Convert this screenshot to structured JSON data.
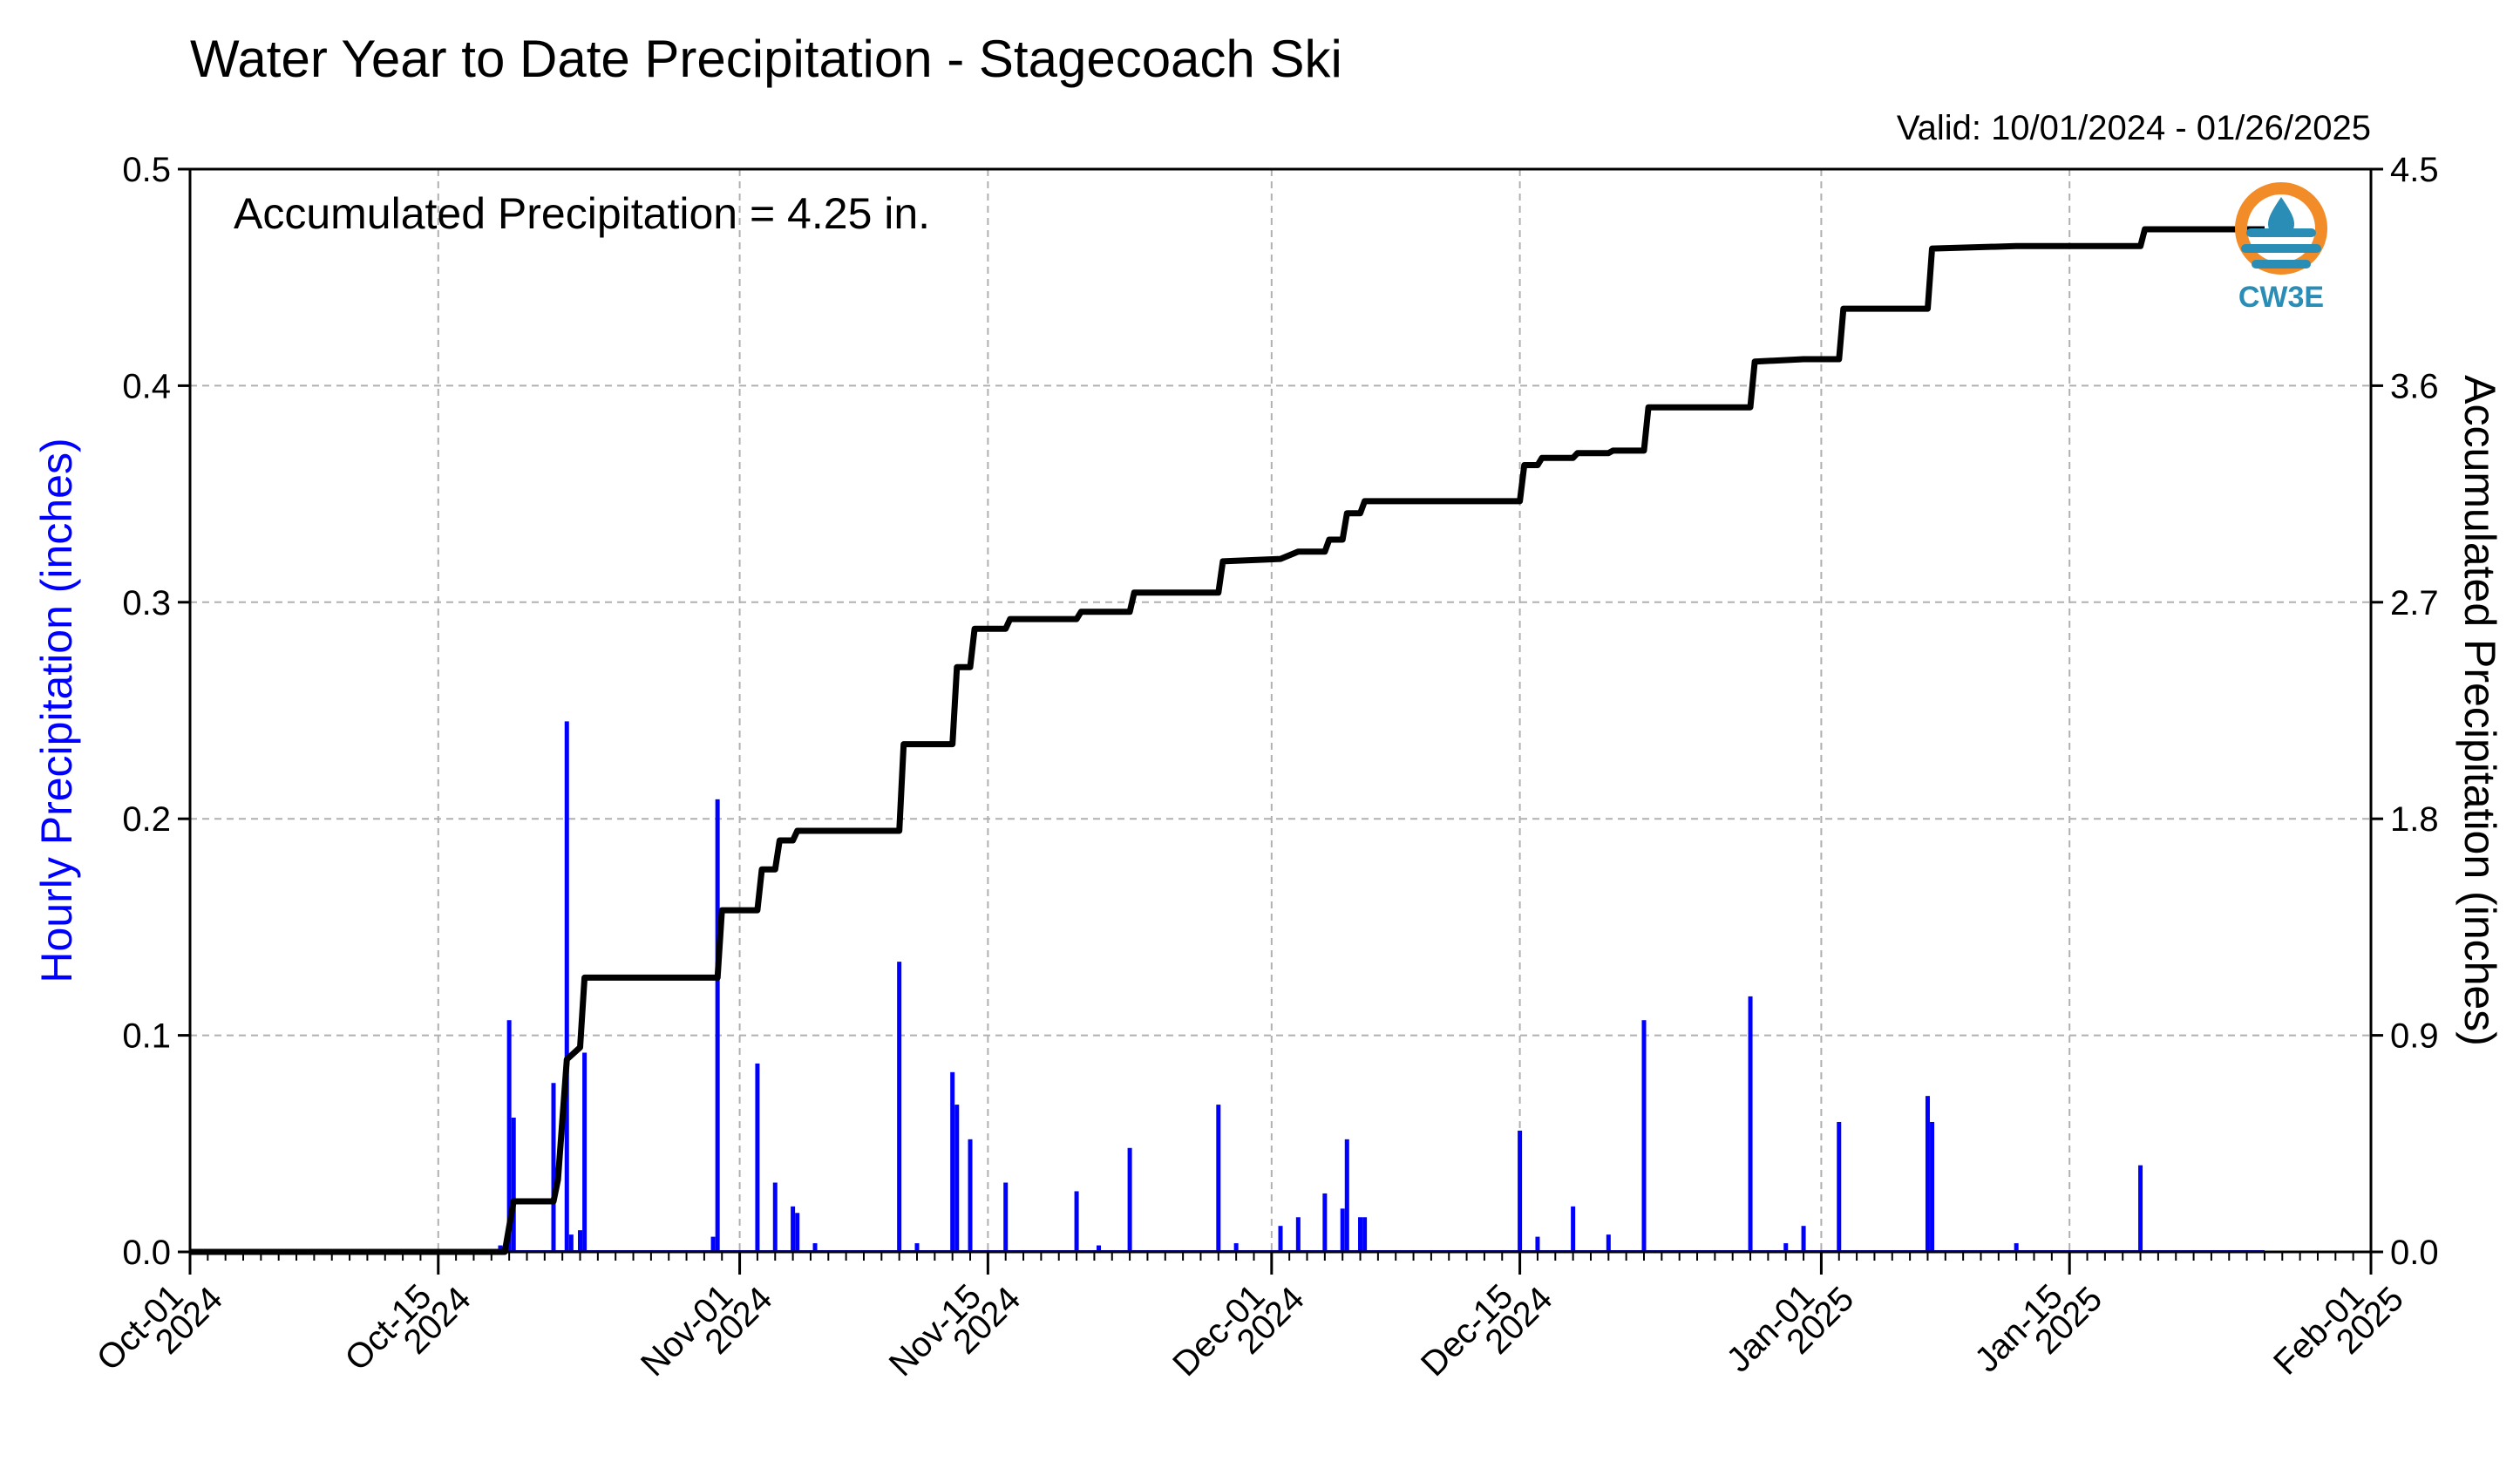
{
  "chart_data": {
    "type": "bar",
    "title": "Water Year to Date Precipitation - Stagecoach Ski",
    "valid_text": "Valid: 10/01/2024 - 01/26/2025",
    "annotation": "Accumulated Precipitation = 4.25 in.",
    "ylabel_left": "Hourly Precipitation (inches)",
    "ylabel_right": "Accumulated Precipitation (inches)",
    "xlim": [
      "2024-10-01",
      "2025-02-01"
    ],
    "ylim_left": [
      0,
      0.5
    ],
    "ylim_right": [
      0,
      4.5
    ],
    "left_ticks": [
      "0.0",
      "0.1",
      "0.2",
      "0.3",
      "0.4",
      "0.5"
    ],
    "right_ticks": [
      "0.0",
      "0.9",
      "1.8",
      "2.7",
      "3.6",
      "4.5"
    ],
    "x_ticks": [
      {
        "date": "2024-10-01",
        "line1": "Oct-01",
        "line2": "2024"
      },
      {
        "date": "2024-10-15",
        "line1": "Oct-15",
        "line2": "2024"
      },
      {
        "date": "2024-11-01",
        "line1": "Nov-01",
        "line2": "2024"
      },
      {
        "date": "2024-11-15",
        "line1": "Nov-15",
        "line2": "2024"
      },
      {
        "date": "2024-12-01",
        "line1": "Dec-01",
        "line2": "2024"
      },
      {
        "date": "2024-12-15",
        "line1": "Dec-15",
        "line2": "2024"
      },
      {
        "date": "2025-01-01",
        "line1": "Jan-01",
        "line2": "2025"
      },
      {
        "date": "2025-01-15",
        "line1": "Jan-15",
        "line2": "2025"
      },
      {
        "date": "2025-02-01",
        "line1": "Feb-01",
        "line2": "2025"
      }
    ],
    "grid": true,
    "colors": {
      "hourly": "#0000ff",
      "accumulated": "#000000",
      "grid": "#b0b0b0"
    },
    "hourly_series": {
      "name": "Hourly Precipitation (inches)",
      "points": [
        [
          "2024-10-18T12:00",
          0.003
        ],
        [
          "2024-10-19T00:00",
          0.107
        ],
        [
          "2024-10-19T06:00",
          0.062
        ],
        [
          "2024-10-21T12:00",
          0.078
        ],
        [
          "2024-10-22T06:00",
          0.245
        ],
        [
          "2024-10-22T12:00",
          0.008
        ],
        [
          "2024-10-23T00:00",
          0.01
        ],
        [
          "2024-10-23T06:00",
          0.092
        ],
        [
          "2024-10-30T12:00",
          0.007
        ],
        [
          "2024-10-30T18:00",
          0.209
        ],
        [
          "2024-11-02T00:00",
          0.087
        ],
        [
          "2024-11-03T00:00",
          0.032
        ],
        [
          "2024-11-04T00:00",
          0.021
        ],
        [
          "2024-11-04T06:00",
          0.018
        ],
        [
          "2024-11-05T06:00",
          0.004
        ],
        [
          "2024-11-10T00:00",
          0.134
        ],
        [
          "2024-11-11T00:00",
          0.004
        ],
        [
          "2024-11-13T00:00",
          0.083
        ],
        [
          "2024-11-13T06:00",
          0.068
        ],
        [
          "2024-11-14T00:00",
          0.052
        ],
        [
          "2024-11-16T00:00",
          0.032
        ],
        [
          "2024-11-20T00:00",
          0.028
        ],
        [
          "2024-11-21T06:00",
          0.003
        ],
        [
          "2024-11-23T00:00",
          0.048
        ],
        [
          "2024-11-28T00:00",
          0.068
        ],
        [
          "2024-11-29T00:00",
          0.004
        ],
        [
          "2024-12-01T12:00",
          0.012
        ],
        [
          "2024-12-02T12:00",
          0.016
        ],
        [
          "2024-12-04T00:00",
          0.027
        ],
        [
          "2024-12-05T00:00",
          0.02
        ],
        [
          "2024-12-05T06:00",
          0.052
        ],
        [
          "2024-12-06T00:00",
          0.016
        ],
        [
          "2024-12-06T06:00",
          0.016
        ],
        [
          "2024-12-15T00:00",
          0.056
        ],
        [
          "2024-12-16T00:00",
          0.007
        ],
        [
          "2024-12-18T00:00",
          0.021
        ],
        [
          "2024-12-20T00:00",
          0.008
        ],
        [
          "2024-12-22T00:00",
          0.107
        ],
        [
          "2024-12-28T00:00",
          0.118
        ],
        [
          "2024-12-30T00:00",
          0.004
        ],
        [
          "2024-12-31T00:00",
          0.012
        ],
        [
          "2025-01-02T00:00",
          0.06
        ],
        [
          "2025-01-07T00:00",
          0.072
        ],
        [
          "2025-01-07T06:00",
          0.06
        ],
        [
          "2025-01-12T00:00",
          0.004
        ],
        [
          "2025-01-19T00:00",
          0.04
        ]
      ]
    },
    "accumulated_series": {
      "name": "Accumulated Precipitation (inches)",
      "points": [
        [
          "2024-10-01T00:00",
          0.0
        ],
        [
          "2024-10-18T18:00",
          0.0
        ],
        [
          "2024-10-19T06:00",
          0.21
        ],
        [
          "2024-10-21T12:00",
          0.21
        ],
        [
          "2024-10-21T18:00",
          0.3
        ],
        [
          "2024-10-22T06:00",
          0.8
        ],
        [
          "2024-10-23T00:00",
          0.85
        ],
        [
          "2024-10-23T06:00",
          1.14
        ],
        [
          "2024-10-30T18:00",
          1.14
        ],
        [
          "2024-10-31T00:00",
          1.42
        ],
        [
          "2024-11-02T00:00",
          1.42
        ],
        [
          "2024-11-02T06:00",
          1.59
        ],
        [
          "2024-11-03T00:00",
          1.59
        ],
        [
          "2024-11-03T06:00",
          1.71
        ],
        [
          "2024-11-04T00:00",
          1.71
        ],
        [
          "2024-11-04T06:00",
          1.75
        ],
        [
          "2024-11-10T00:00",
          1.75
        ],
        [
          "2024-11-10T06:00",
          2.11
        ],
        [
          "2024-11-13T00:00",
          2.11
        ],
        [
          "2024-11-13T06:00",
          2.43
        ],
        [
          "2024-11-14T00:00",
          2.43
        ],
        [
          "2024-11-14T06:00",
          2.59
        ],
        [
          "2024-11-16T00:00",
          2.59
        ],
        [
          "2024-11-16T06:00",
          2.63
        ],
        [
          "2024-11-20T00:00",
          2.63
        ],
        [
          "2024-11-20T06:00",
          2.66
        ],
        [
          "2024-11-23T00:00",
          2.66
        ],
        [
          "2024-11-23T06:00",
          2.74
        ],
        [
          "2024-11-28T00:00",
          2.74
        ],
        [
          "2024-11-28T06:00",
          2.87
        ],
        [
          "2024-12-01T12:00",
          2.88
        ],
        [
          "2024-12-02T12:00",
          2.91
        ],
        [
          "2024-12-04T00:00",
          2.91
        ],
        [
          "2024-12-04T06:00",
          2.96
        ],
        [
          "2024-12-05T00:00",
          2.96
        ],
        [
          "2024-12-05T06:00",
          3.07
        ],
        [
          "2024-12-06T00:00",
          3.07
        ],
        [
          "2024-12-06T06:00",
          3.12
        ],
        [
          "2024-12-15T00:00",
          3.12
        ],
        [
          "2024-12-15T06:00",
          3.27
        ],
        [
          "2024-12-16T00:00",
          3.27
        ],
        [
          "2024-12-16T06:00",
          3.3
        ],
        [
          "2024-12-18T00:00",
          3.3
        ],
        [
          "2024-12-18T06:00",
          3.32
        ],
        [
          "2024-12-20T00:00",
          3.32
        ],
        [
          "2024-12-20T06:00",
          3.33
        ],
        [
          "2024-12-22T00:00",
          3.33
        ],
        [
          "2024-12-22T06:00",
          3.51
        ],
        [
          "2024-12-28T00:00",
          3.51
        ],
        [
          "2024-12-28T06:00",
          3.7
        ],
        [
          "2024-12-31T00:00",
          3.71
        ],
        [
          "2025-01-02T00:00",
          3.71
        ],
        [
          "2025-01-02T06:00",
          3.92
        ],
        [
          "2025-01-07T00:00",
          3.92
        ],
        [
          "2025-01-07T06:00",
          4.17
        ],
        [
          "2025-01-12T00:00",
          4.18
        ],
        [
          "2025-01-19T00:00",
          4.18
        ],
        [
          "2025-01-19T06:00",
          4.25
        ],
        [
          "2025-01-26T00:00",
          4.25
        ]
      ]
    }
  },
  "logo": {
    "text": "CW3E",
    "colors": {
      "ring": "#f28c28",
      "waves": "#2a8db5"
    }
  }
}
